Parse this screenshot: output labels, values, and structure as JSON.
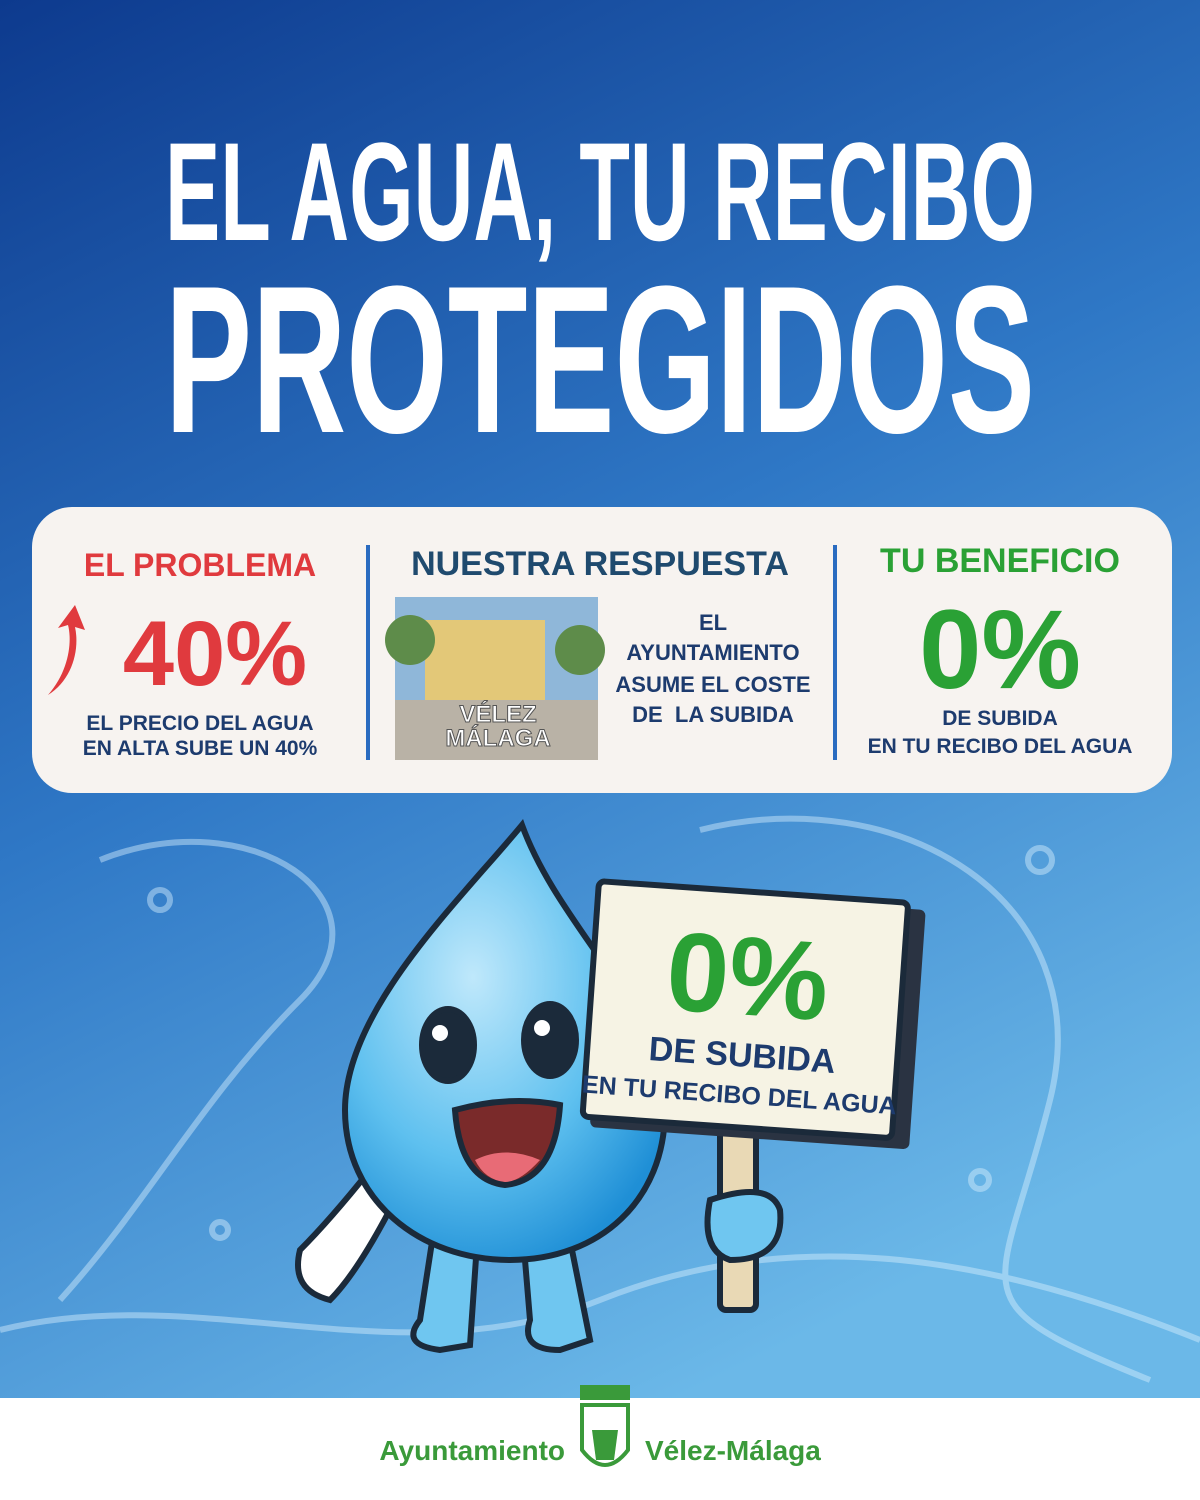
{
  "header": {
    "title_lines": [
      "EL AGUA, TU RECIBO",
      "PROTEGIDOS"
    ]
  },
  "panel": {
    "problem": {
      "heading": "EL PROBLEMA",
      "figure": "40%",
      "caption": [
        "EL PRECIO DEL AGUA",
        "EN ALTA SUBE UN 40%"
      ]
    },
    "response": {
      "heading": "NUESTRA RESPUESTA",
      "image_label": [
        "VÉLEZ",
        "MÁLAGA"
      ],
      "text": [
        "EL",
        "AYUNTAMIENTO",
        "ASUME EL COSTE",
        "DE  LA SUBIDA"
      ]
    },
    "benefit": {
      "heading": "TU BENEFICIO",
      "figure": "0%",
      "caption": [
        "DE SUBIDA",
        "EN TU RECIBO DEL AGUA"
      ]
    }
  },
  "sign": {
    "figure": "0%",
    "lines": [
      "DE SUBIDA",
      "EN TU RECIBO DEL AGUA"
    ]
  },
  "footer": {
    "left": "Ayuntamiento",
    "right": "Vélez-Málaga"
  }
}
